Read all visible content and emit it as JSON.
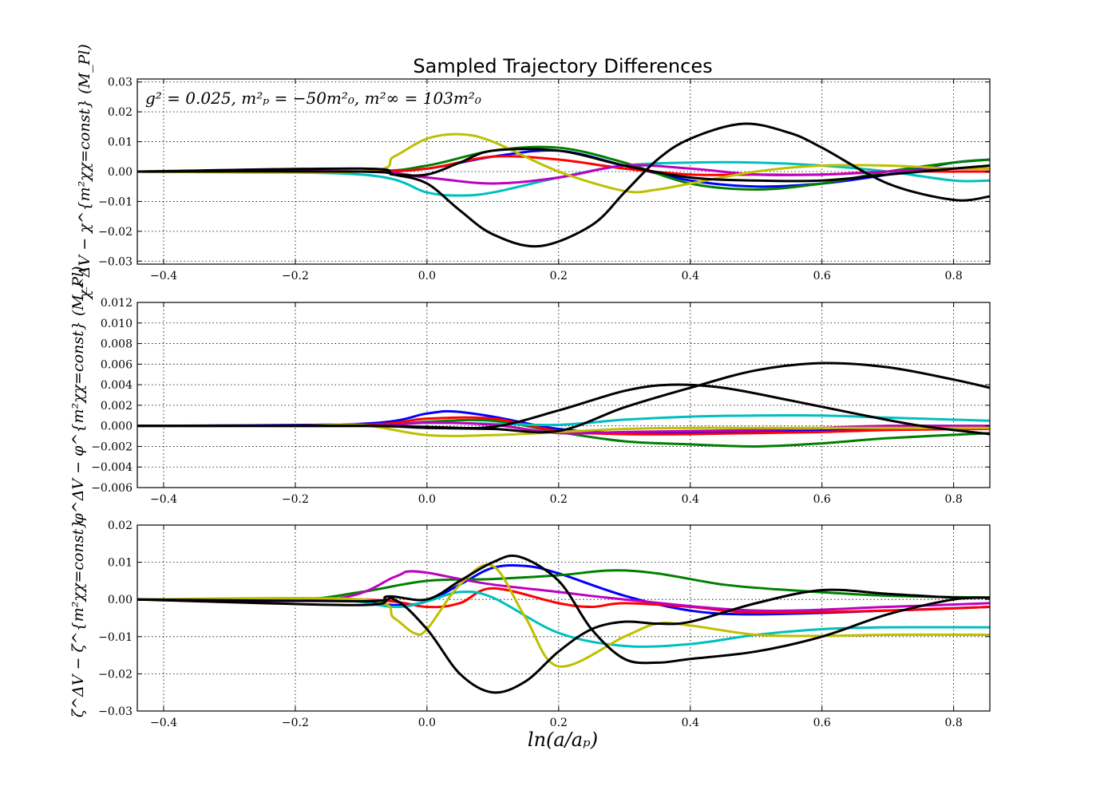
{
  "chart_data": [
    {
      "type": "line",
      "title": "Sampled Trajectory Differences",
      "annotation": "g² = 0.025, m²ₚ = −50m²₀, m²∞ = 103m²₀",
      "ylabel": "χ^ΔV − χ^{m²χχ=const} (M_Pl)",
      "xlim": [
        -0.44,
        0.855
      ],
      "ylim": [
        -0.031,
        0.031
      ],
      "xticks": [
        "−0.4",
        "−0.2",
        "0.0",
        "0.2",
        "0.4",
        "0.6",
        "0.8"
      ],
      "xtick_values": [
        -0.4,
        -0.2,
        0.0,
        0.2,
        0.4,
        0.6,
        0.8
      ],
      "yticks": [
        "−0.03",
        "−0.02",
        "−0.01",
        "0.00",
        "0.01",
        "0.02",
        "0.03"
      ],
      "ytick_values": [
        -0.03,
        -0.02,
        -0.01,
        0.0,
        0.01,
        0.02,
        0.03
      ],
      "grid": true,
      "series": [
        {
          "color": "#0000ff",
          "x": [
            -0.44,
            -0.1,
            0.0,
            0.1,
            0.2,
            0.3,
            0.4,
            0.5,
            0.6,
            0.7,
            0.8,
            0.855
          ],
          "y": [
            0,
            0,
            0.001,
            0.005,
            0.007,
            0.002,
            -0.003,
            -0.005,
            -0.004,
            -0.001,
            0.003,
            0.004
          ]
        },
        {
          "color": "#008000",
          "x": [
            -0.44,
            -0.1,
            0.0,
            0.1,
            0.2,
            0.3,
            0.4,
            0.5,
            0.6,
            0.7,
            0.8,
            0.855
          ],
          "y": [
            0,
            0,
            0.002,
            0.007,
            0.008,
            0.003,
            -0.004,
            -0.006,
            -0.004,
            0,
            0.003,
            0.004
          ]
        },
        {
          "color": "#ff0000",
          "x": [
            -0.44,
            -0.1,
            0.0,
            0.1,
            0.2,
            0.3,
            0.4,
            0.5,
            0.6,
            0.7,
            0.8,
            0.855
          ],
          "y": [
            0,
            0,
            0.001,
            0.005,
            0.004,
            0.001,
            -0.001,
            -0.001,
            -0.001,
            0,
            0,
            0
          ]
        },
        {
          "color": "#00bfbf",
          "x": [
            -0.44,
            -0.1,
            0.0,
            0.05,
            0.1,
            0.2,
            0.3,
            0.4,
            0.5,
            0.6,
            0.7,
            0.8,
            0.855
          ],
          "y": [
            0,
            -0.001,
            -0.007,
            -0.008,
            -0.007,
            -0.002,
            0.002,
            0.003,
            0.003,
            0.002,
            0,
            -0.003,
            -0.003
          ]
        },
        {
          "color": "#bf00bf",
          "x": [
            -0.44,
            -0.1,
            0.0,
            0.1,
            0.2,
            0.3,
            0.4,
            0.5,
            0.6,
            0.7,
            0.8,
            0.855
          ],
          "y": [
            0,
            0,
            -0.002,
            -0.004,
            -0.002,
            0.002,
            0.001,
            -0.001,
            -0.001,
            0,
            0.001,
            0.001
          ]
        },
        {
          "color": "#bfbf00",
          "x": [
            -0.44,
            -0.1,
            -0.05,
            0.0,
            0.05,
            0.1,
            0.2,
            0.3,
            0.35,
            0.4,
            0.5,
            0.6,
            0.7,
            0.8,
            0.855
          ],
          "y": [
            0,
            0,
            0.005,
            0.011,
            0.0125,
            0.01,
            0,
            -0.0065,
            -0.006,
            -0.004,
            0,
            0.002,
            0.002,
            0.001,
            0.001
          ]
        },
        {
          "color": "#000000",
          "x": [
            -0.44,
            -0.1,
            -0.05,
            0.0,
            0.05,
            0.1,
            0.17,
            0.25,
            0.3,
            0.35,
            0.4,
            0.48,
            0.55,
            0.6,
            0.7,
            0.8,
            0.855
          ],
          "y": [
            0,
            0.001,
            -0.001,
            -0.004,
            -0.013,
            -0.021,
            -0.025,
            -0.018,
            -0.007,
            0.004,
            0.011,
            0.016,
            0.013,
            0.008,
            -0.004,
            -0.0095,
            -0.0083
          ]
        },
        {
          "color": "#000000",
          "x": [
            -0.44,
            -0.1,
            -0.05,
            0.0,
            0.05,
            0.1,
            0.2,
            0.3,
            0.4,
            0.5,
            0.6,
            0.7,
            0.8,
            0.855
          ],
          "y": [
            0,
            0,
            -0.001,
            -0.001,
            0.003,
            0.007,
            0.007,
            0.002,
            -0.002,
            -0.003,
            -0.003,
            -0.001,
            0.001,
            0.002
          ]
        }
      ]
    },
    {
      "type": "line",
      "ylabel": "φ^ΔV − φ^{m²χχ=const} (M_Pl)",
      "xlim": [
        -0.44,
        0.855
      ],
      "ylim": [
        -0.006,
        0.012
      ],
      "xticks": [
        "−0.4",
        "−0.2",
        "0.0",
        "0.2",
        "0.4",
        "0.6",
        "0.8"
      ],
      "xtick_values": [
        -0.4,
        -0.2,
        0.0,
        0.2,
        0.4,
        0.6,
        0.8
      ],
      "yticks": [
        "−0.006",
        "−0.004",
        "−0.002",
        "0.000",
        "0.002",
        "0.004",
        "0.006",
        "0.008",
        "0.010",
        "0.012"
      ],
      "ytick_values": [
        -0.006,
        -0.004,
        -0.002,
        0.0,
        0.002,
        0.004,
        0.006,
        0.008,
        0.01,
        0.012
      ],
      "grid": true,
      "series": [
        {
          "color": "#0000ff",
          "x": [
            -0.44,
            -0.1,
            0.0,
            0.04,
            0.1,
            0.2,
            0.3,
            0.5,
            0.7,
            0.855
          ],
          "y": [
            0,
            0.0002,
            0.0012,
            0.0014,
            0.0009,
            -0.0003,
            -0.0007,
            -0.0006,
            -0.0003,
            -0.0002
          ]
        },
        {
          "color": "#008000",
          "x": [
            -0.44,
            -0.1,
            0.0,
            0.1,
            0.2,
            0.3,
            0.4,
            0.5,
            0.6,
            0.7,
            0.855
          ],
          "y": [
            0,
            0,
            0.0004,
            0.0005,
            -0.0006,
            -0.0015,
            -0.0018,
            -0.002,
            -0.0017,
            -0.0012,
            -0.0007
          ]
        },
        {
          "color": "#ff0000",
          "x": [
            -0.44,
            -0.1,
            0.0,
            0.1,
            0.2,
            0.3,
            0.4,
            0.5,
            0.6,
            0.7,
            0.855
          ],
          "y": [
            0,
            0.0001,
            0.0007,
            0.0007,
            -0.0005,
            -0.0008,
            -0.0008,
            -0.0007,
            -0.0006,
            -0.0004,
            -0.0003
          ]
        },
        {
          "color": "#00bfbf",
          "x": [
            -0.44,
            -0.1,
            0.0,
            0.1,
            0.2,
            0.3,
            0.4,
            0.5,
            0.6,
            0.7,
            0.855
          ],
          "y": [
            0,
            0,
            0.0003,
            0.0002,
            0.0001,
            0.0006,
            0.0009,
            0.001,
            0.001,
            0.0008,
            0.0005
          ]
        },
        {
          "color": "#bf00bf",
          "x": [
            -0.44,
            -0.1,
            0.0,
            0.1,
            0.2,
            0.3,
            0.4,
            0.5,
            0.6,
            0.7,
            0.855
          ],
          "y": [
            0,
            0,
            0.0003,
            0.0001,
            -0.0007,
            -0.0006,
            -0.0005,
            -0.0004,
            -0.0002,
            0,
            0
          ]
        },
        {
          "color": "#bfbf00",
          "x": [
            -0.44,
            -0.2,
            -0.1,
            0.0,
            0.1,
            0.2,
            0.3,
            0.4,
            0.5,
            0.6,
            0.7,
            0.855
          ],
          "y": [
            0,
            0,
            0.0001,
            -0.0009,
            -0.0009,
            -0.0006,
            -0.0003,
            -0.0002,
            -0.0002,
            -0.0002,
            -0.0002,
            -0.0002
          ]
        },
        {
          "color": "#000000",
          "x": [
            -0.44,
            -0.1,
            0.0,
            0.1,
            0.2,
            0.3,
            0.37,
            0.45,
            0.55,
            0.65,
            0.75,
            0.855
          ],
          "y": [
            0,
            0,
            -0.0001,
            -0.0001,
            0.0015,
            0.0034,
            0.004,
            0.0037,
            0.0025,
            0.0012,
            0,
            -0.0008
          ]
        },
        {
          "color": "#000000",
          "x": [
            -0.44,
            -0.1,
            0.0,
            0.1,
            0.2,
            0.3,
            0.4,
            0.5,
            0.6,
            0.7,
            0.8,
            0.855
          ],
          "y": [
            0,
            0,
            -0.0002,
            -0.0003,
            -0.0005,
            0.0018,
            0.0037,
            0.0054,
            0.0061,
            0.0057,
            0.0045,
            0.0037
          ]
        }
      ]
    },
    {
      "type": "line",
      "ylabel": "ζ^ΔV − ζ^{m²χχ=const}",
      "xlabel": "ln(a/aₚ)",
      "xlim": [
        -0.44,
        0.855
      ],
      "ylim": [
        -0.03,
        0.02
      ],
      "xticks": [
        "−0.4",
        "−0.2",
        "0.0",
        "0.2",
        "0.4",
        "0.6",
        "0.8"
      ],
      "xtick_values": [
        -0.4,
        -0.2,
        0.0,
        0.2,
        0.4,
        0.6,
        0.8
      ],
      "yticks": [
        "−0.03",
        "−0.02",
        "−0.01",
        "0.00",
        "0.01",
        "0.02"
      ],
      "ytick_values": [
        -0.03,
        -0.02,
        -0.01,
        0.0,
        0.01,
        0.02
      ],
      "grid": true,
      "series": [
        {
          "color": "#0000ff",
          "x": [
            -0.44,
            -0.15,
            -0.05,
            0.0,
            0.05,
            0.1,
            0.15,
            0.2,
            0.3,
            0.4,
            0.5,
            0.7,
            0.855
          ],
          "y": [
            0,
            0,
            -0.0015,
            -0.0005,
            0.004,
            0.0085,
            0.009,
            0.007,
            0.001,
            -0.003,
            -0.004,
            -0.003,
            -0.002
          ]
        },
        {
          "color": "#008000",
          "x": [
            -0.44,
            -0.2,
            -0.1,
            0.0,
            0.1,
            0.2,
            0.28,
            0.35,
            0.45,
            0.55,
            0.7,
            0.855
          ],
          "y": [
            0,
            0,
            0.002,
            0.005,
            0.0055,
            0.0065,
            0.0078,
            0.007,
            0.004,
            0.0025,
            0.001,
            0.0005
          ]
        },
        {
          "color": "#ff0000",
          "x": [
            -0.44,
            -0.1,
            0.0,
            0.05,
            0.1,
            0.2,
            0.25,
            0.3,
            0.4,
            0.5,
            0.7,
            0.855
          ],
          "y": [
            0,
            0,
            -0.002,
            -0.001,
            0.003,
            -0.001,
            -0.002,
            -0.001,
            -0.002,
            -0.0035,
            -0.003,
            -0.002
          ]
        },
        {
          "color": "#00bfbf",
          "x": [
            -0.44,
            -0.15,
            -0.05,
            0.0,
            0.05,
            0.1,
            0.2,
            0.3,
            0.4,
            0.5,
            0.6,
            0.7,
            0.855
          ],
          "y": [
            0,
            0,
            -0.002,
            -0.0005,
            0.002,
            0.0005,
            -0.009,
            -0.0125,
            -0.012,
            -0.0095,
            -0.008,
            -0.0075,
            -0.0075
          ]
        },
        {
          "color": "#bf00bf",
          "x": [
            -0.44,
            -0.15,
            -0.05,
            -0.03,
            0.0,
            0.05,
            0.1,
            0.2,
            0.3,
            0.5,
            0.7,
            0.855
          ],
          "y": [
            0,
            0,
            0.006,
            0.0075,
            0.0072,
            0.0055,
            0.004,
            0.002,
            0,
            -0.003,
            -0.002,
            -0.001
          ]
        },
        {
          "color": "#bfbf00",
          "x": [
            -0.44,
            -0.1,
            -0.05,
            -0.02,
            0.0,
            0.05,
            0.1,
            0.15,
            0.2,
            0.3,
            0.35,
            0.4,
            0.5,
            0.6,
            0.7,
            0.855
          ],
          "y": [
            0,
            0,
            -0.005,
            -0.009,
            -0.008,
            0.004,
            0.009,
            -0.005,
            -0.018,
            -0.01,
            -0.0065,
            -0.007,
            -0.0095,
            -0.0098,
            -0.0095,
            -0.0095
          ]
        },
        {
          "color": "#000000",
          "x": [
            -0.44,
            -0.1,
            -0.05,
            0.0,
            0.05,
            0.1,
            0.15,
            0.2,
            0.25,
            0.3,
            0.35,
            0.4,
            0.5,
            0.6,
            0.7,
            0.8,
            0.855
          ],
          "y": [
            0,
            -0.0005,
            0,
            -0.008,
            -0.02,
            -0.025,
            -0.022,
            -0.014,
            -0.008,
            -0.006,
            -0.0065,
            -0.006,
            -0.001,
            0.0025,
            0.0015,
            0.0005,
            0.0005
          ]
        },
        {
          "color": "#000000",
          "x": [
            -0.44,
            -0.1,
            -0.06,
            0.0,
            0.05,
            0.1,
            0.14,
            0.2,
            0.25,
            0.3,
            0.35,
            0.4,
            0.5,
            0.6,
            0.7,
            0.8,
            0.855
          ],
          "y": [
            0,
            -0.0015,
            0.0008,
            0,
            0.005,
            0.01,
            0.0115,
            0.005,
            -0.008,
            -0.016,
            -0.017,
            -0.016,
            -0.014,
            -0.01,
            -0.004,
            0,
            0.0005
          ]
        }
      ]
    }
  ]
}
